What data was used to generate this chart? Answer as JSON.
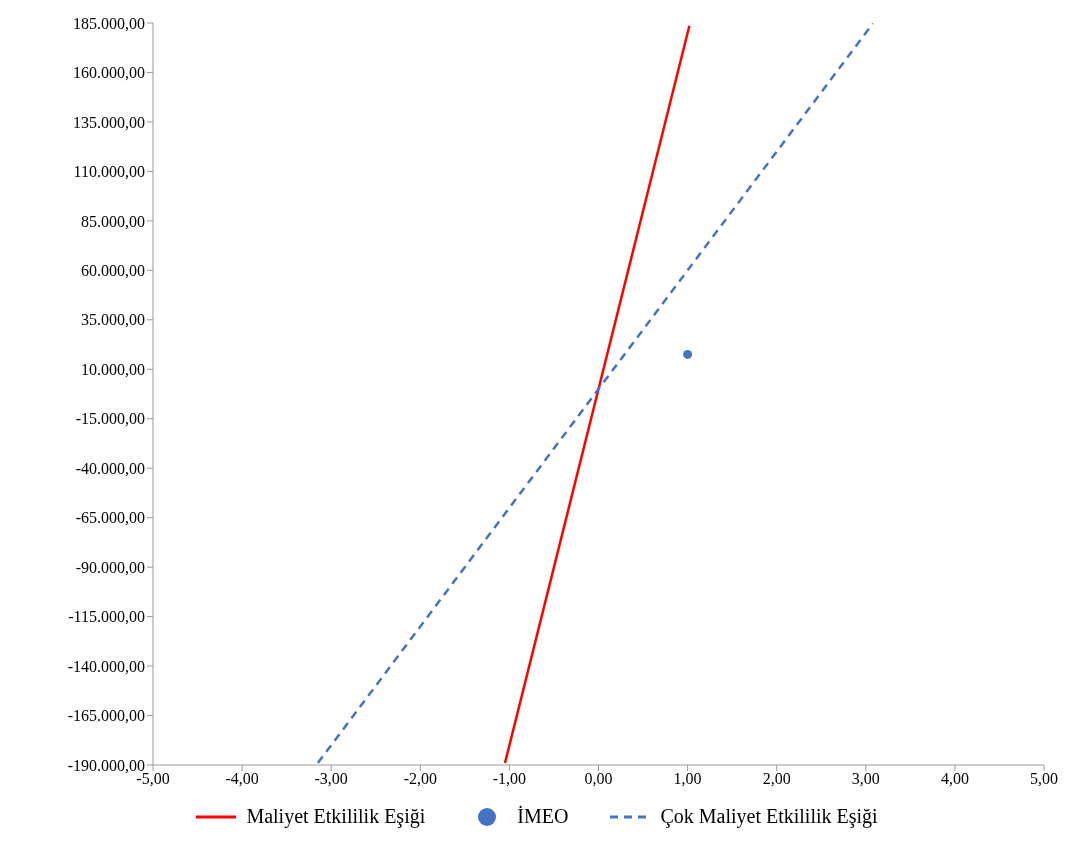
{
  "chart_data": {
    "type": "line",
    "legend": "bottom",
    "grid": false,
    "xlim": [
      -5,
      5
    ],
    "xticks": [
      {
        "value": -5,
        "label": "-5,00"
      },
      {
        "value": -4,
        "label": "-4,00"
      },
      {
        "value": -3,
        "label": "-3,00"
      },
      {
        "value": -2,
        "label": "-2,00"
      },
      {
        "value": -1,
        "label": "-1,00"
      },
      {
        "value": 0,
        "label": "0,00"
      },
      {
        "value": 1,
        "label": "1,00"
      },
      {
        "value": 2,
        "label": "2,00"
      },
      {
        "value": 3,
        "label": "3,00"
      },
      {
        "value": 4,
        "label": "4,00"
      },
      {
        "value": 5,
        "label": "5,00"
      }
    ],
    "ylim": [
      -190000,
      185000
    ],
    "yticks": [
      {
        "value": -190000,
        "label": "-190.000,00"
      },
      {
        "value": -165000,
        "label": "-165.000,00"
      },
      {
        "value": -140000,
        "label": "-140.000,00"
      },
      {
        "value": -115000,
        "label": "-115.000,00"
      },
      {
        "value": -90000,
        "label": "-90.000,00"
      },
      {
        "value": -65000,
        "label": "-65.000,00"
      },
      {
        "value": -40000,
        "label": "-40.000,00"
      },
      {
        "value": -15000,
        "label": "-15.000,00"
      },
      {
        "value": 10000,
        "label": "10.000,00"
      },
      {
        "value": 35000,
        "label": "35.000,00"
      },
      {
        "value": 60000,
        "label": "60.000,00"
      },
      {
        "value": 85000,
        "label": "85.000,00"
      },
      {
        "value": 110000,
        "label": "110.000,00"
      },
      {
        "value": 135000,
        "label": "135.000,00"
      },
      {
        "value": 160000,
        "label": "160.000,00"
      },
      {
        "value": 185000,
        "label": "185.000,00"
      }
    ],
    "series": [
      {
        "name": "Maliyet Etkililik Eşiği",
        "type": "line",
        "color": "#ff0000",
        "line_style": "solid",
        "marker": "none",
        "x": [
          -1.05,
          0,
          1.02
        ],
        "values": [
          -189000,
          0,
          183600
        ]
      },
      {
        "name": "İMEO",
        "type": "scatter",
        "color": "#4472c4",
        "marker": "circle",
        "x": [
          1
        ],
        "values": [
          17500
        ]
      },
      {
        "name": "Çok Maliyet Etkililik Eşiği",
        "type": "line",
        "color": "#4472c4",
        "line_style": "dashed",
        "marker": "none",
        "x": [
          -3.15,
          0,
          3.08
        ],
        "values": [
          -189000,
          0,
          184800
        ]
      }
    ]
  }
}
